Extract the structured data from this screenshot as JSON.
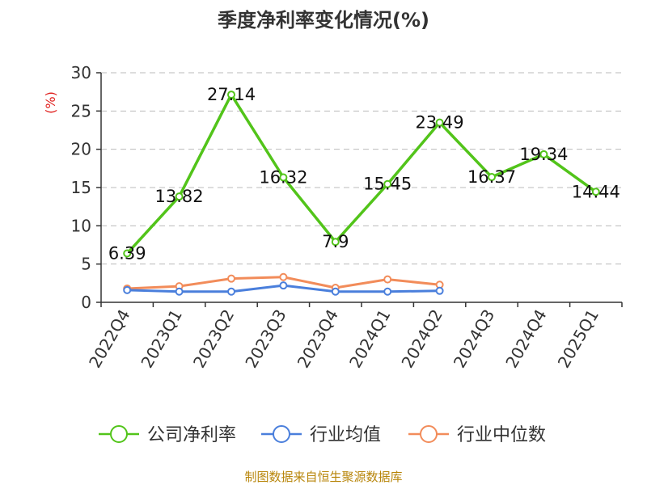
{
  "chart_data": {
    "type": "line",
    "title": "季度净利率变化情况(%)",
    "ylabel": "(%)",
    "xlabel": "",
    "categories": [
      "2022Q4",
      "2023Q1",
      "2023Q2",
      "2023Q3",
      "2023Q4",
      "2024Q1",
      "2024Q2",
      "2024Q3",
      "2024Q4",
      "2025Q1"
    ],
    "yticks": [
      0,
      5,
      10,
      15,
      20,
      25,
      30
    ],
    "ylim": [
      0,
      30
    ],
    "grid": true,
    "legend_position": "bottom",
    "series": [
      {
        "name": "公司净利率",
        "color": "#52c41a",
        "values": [
          6.39,
          13.82,
          27.14,
          16.32,
          7.9,
          15.45,
          23.49,
          16.37,
          19.34,
          14.44
        ],
        "labels": [
          "6.39",
          "13.82",
          "27.14",
          "16.32",
          "7.9",
          "15.45",
          "23.49",
          "16.37",
          "19.34",
          "14.44"
        ]
      },
      {
        "name": "行业均值",
        "color": "#4a7fdc",
        "values": [
          1.6,
          1.4,
          1.4,
          2.2,
          1.4,
          1.4,
          1.5,
          null,
          null,
          null
        ]
      },
      {
        "name": "行业中位数",
        "color": "#f28c5a",
        "values": [
          1.8,
          2.1,
          3.1,
          3.3,
          1.9,
          3.0,
          2.3,
          null,
          null,
          null
        ]
      }
    ],
    "source": "制图数据来自恒生聚源数据库"
  }
}
